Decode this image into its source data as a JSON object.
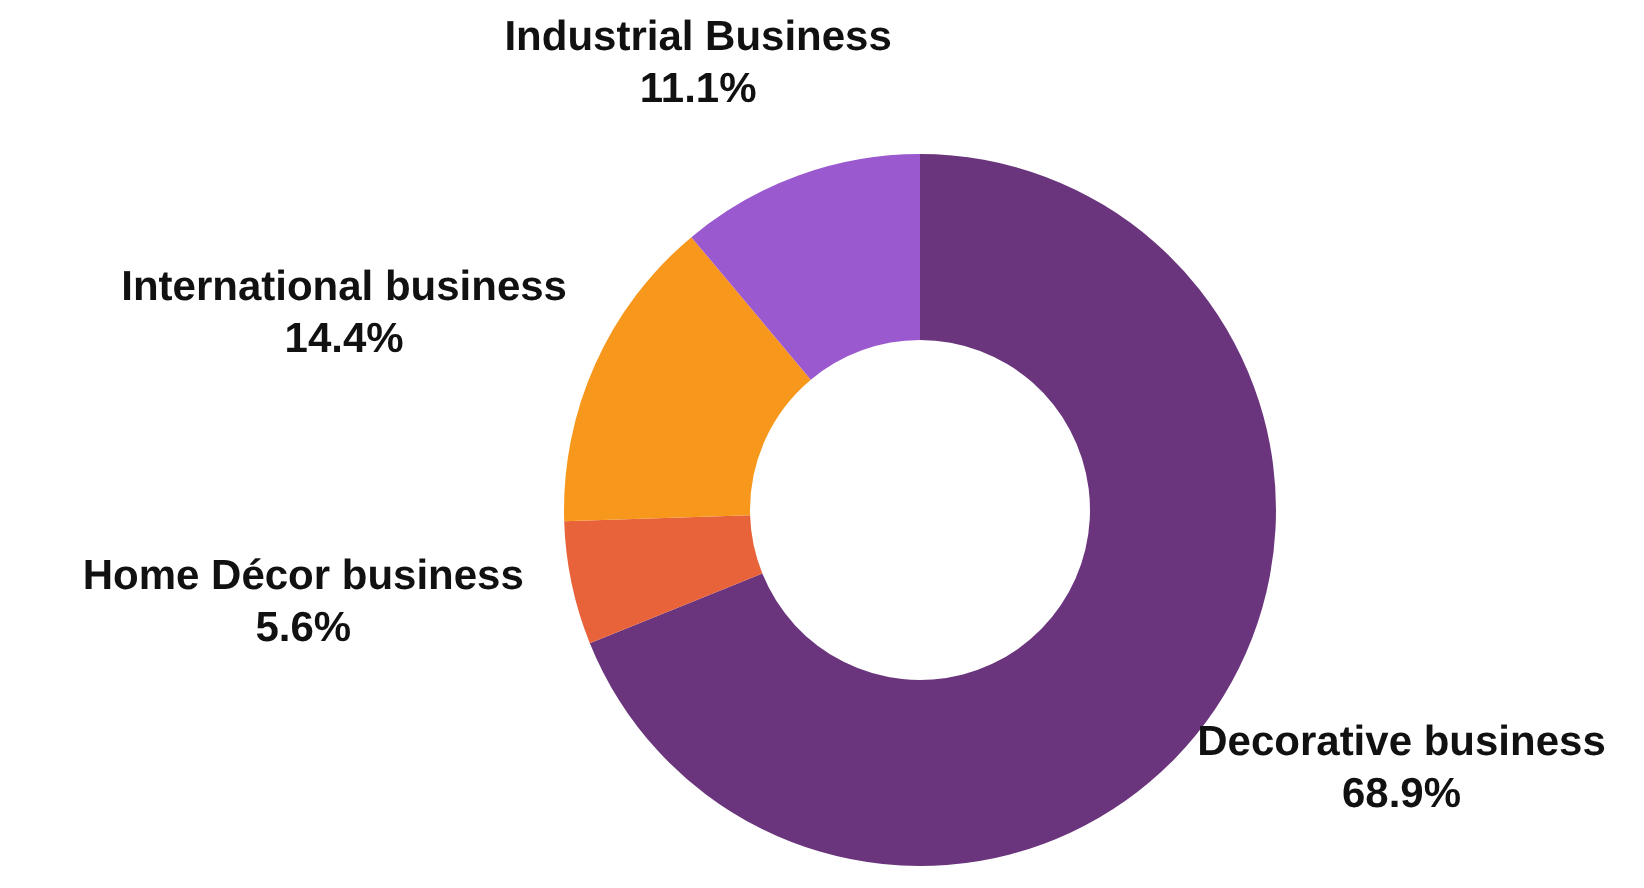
{
  "chart_data": {
    "type": "donut",
    "categories": [
      "Decorative business",
      "Home Décor business",
      "International business",
      "Industrial Business"
    ],
    "values": [
      68.9,
      5.6,
      14.4,
      11.1
    ],
    "value_labels": [
      "68.9%",
      "5.6%",
      "14.4%",
      "11.1%"
    ],
    "colors": [
      "#6a357d",
      "#e8623a",
      "#f7971c",
      "#9b59cf"
    ]
  }
}
